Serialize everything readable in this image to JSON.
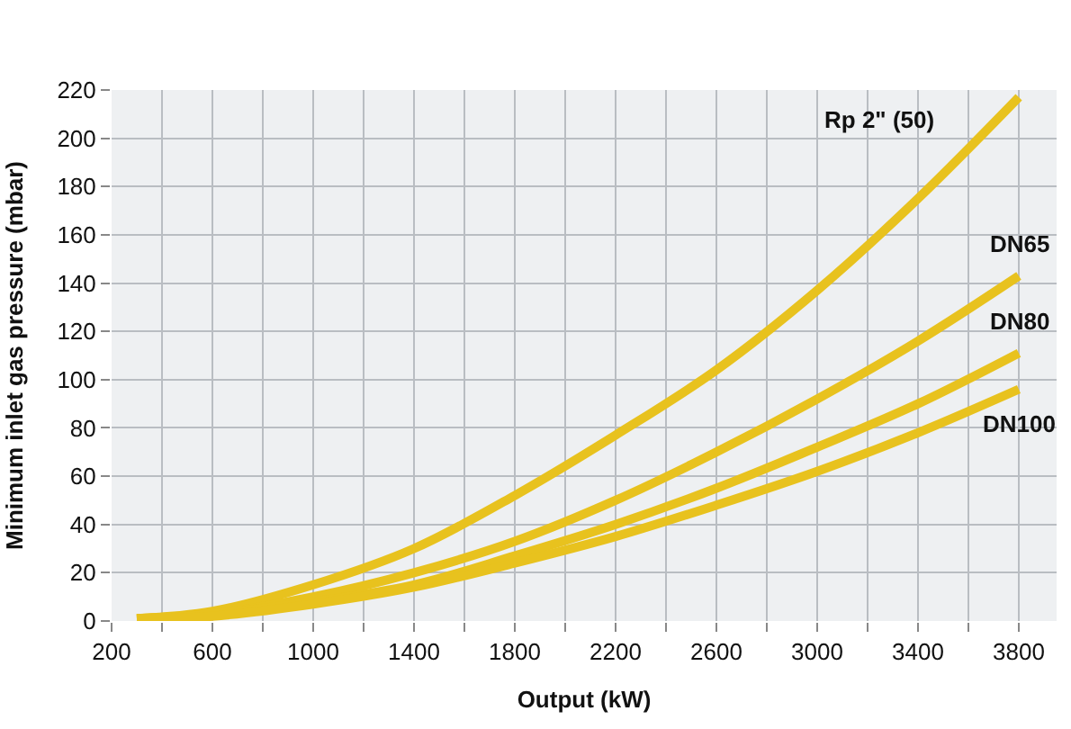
{
  "chart_data": {
    "type": "line",
    "xlabel": "Output (kW)",
    "ylabel": "Minimum inlet gas pressure (mbar)",
    "x": [
      300,
      600,
      1000,
      1400,
      1800,
      2200,
      2600,
      3000,
      3400,
      3800
    ],
    "series": [
      {
        "name": "Rp 2\" (50)",
        "color": "#e8c21e",
        "values": [
          1,
          4,
          15,
          30,
          52,
          77,
          104,
          137,
          175,
          217
        ]
      },
      {
        "name": "DN65",
        "color": "#e8c21e",
        "values": [
          1,
          3,
          10,
          20,
          33,
          50,
          70,
          92,
          116,
          143
        ]
      },
      {
        "name": "DN80",
        "color": "#e8c21e",
        "values": [
          1,
          3,
          8,
          15,
          27,
          40,
          55,
          72,
          90,
          111
        ]
      },
      {
        "name": "DN100",
        "color": "#e8c21e",
        "values": [
          1,
          2,
          7,
          14,
          24,
          35,
          48,
          62,
          78,
          96
        ]
      }
    ],
    "xlim": [
      200,
      3950
    ],
    "xticks": [
      200,
      {
        "value": 400,
        "label": null
      },
      600,
      {
        "value": 800,
        "label": null
      },
      1000,
      {
        "value": 1200,
        "label": null
      },
      1400,
      {
        "value": 1600,
        "label": null
      },
      1800,
      {
        "value": 2000,
        "label": null
      },
      2200,
      {
        "value": 2400,
        "label": null
      },
      2600,
      {
        "value": 2800,
        "label": null
      },
      3000,
      {
        "value": 3200,
        "label": null
      },
      3400,
      {
        "value": 3600,
        "label": null
      },
      3800
    ],
    "ylim": [
      0,
      220
    ],
    "yticks": [
      0,
      20,
      40,
      60,
      80,
      100,
      120,
      140,
      160,
      180,
      200,
      220
    ],
    "grid": true,
    "legend": false,
    "marker": "none",
    "line_style": "solid"
  }
}
